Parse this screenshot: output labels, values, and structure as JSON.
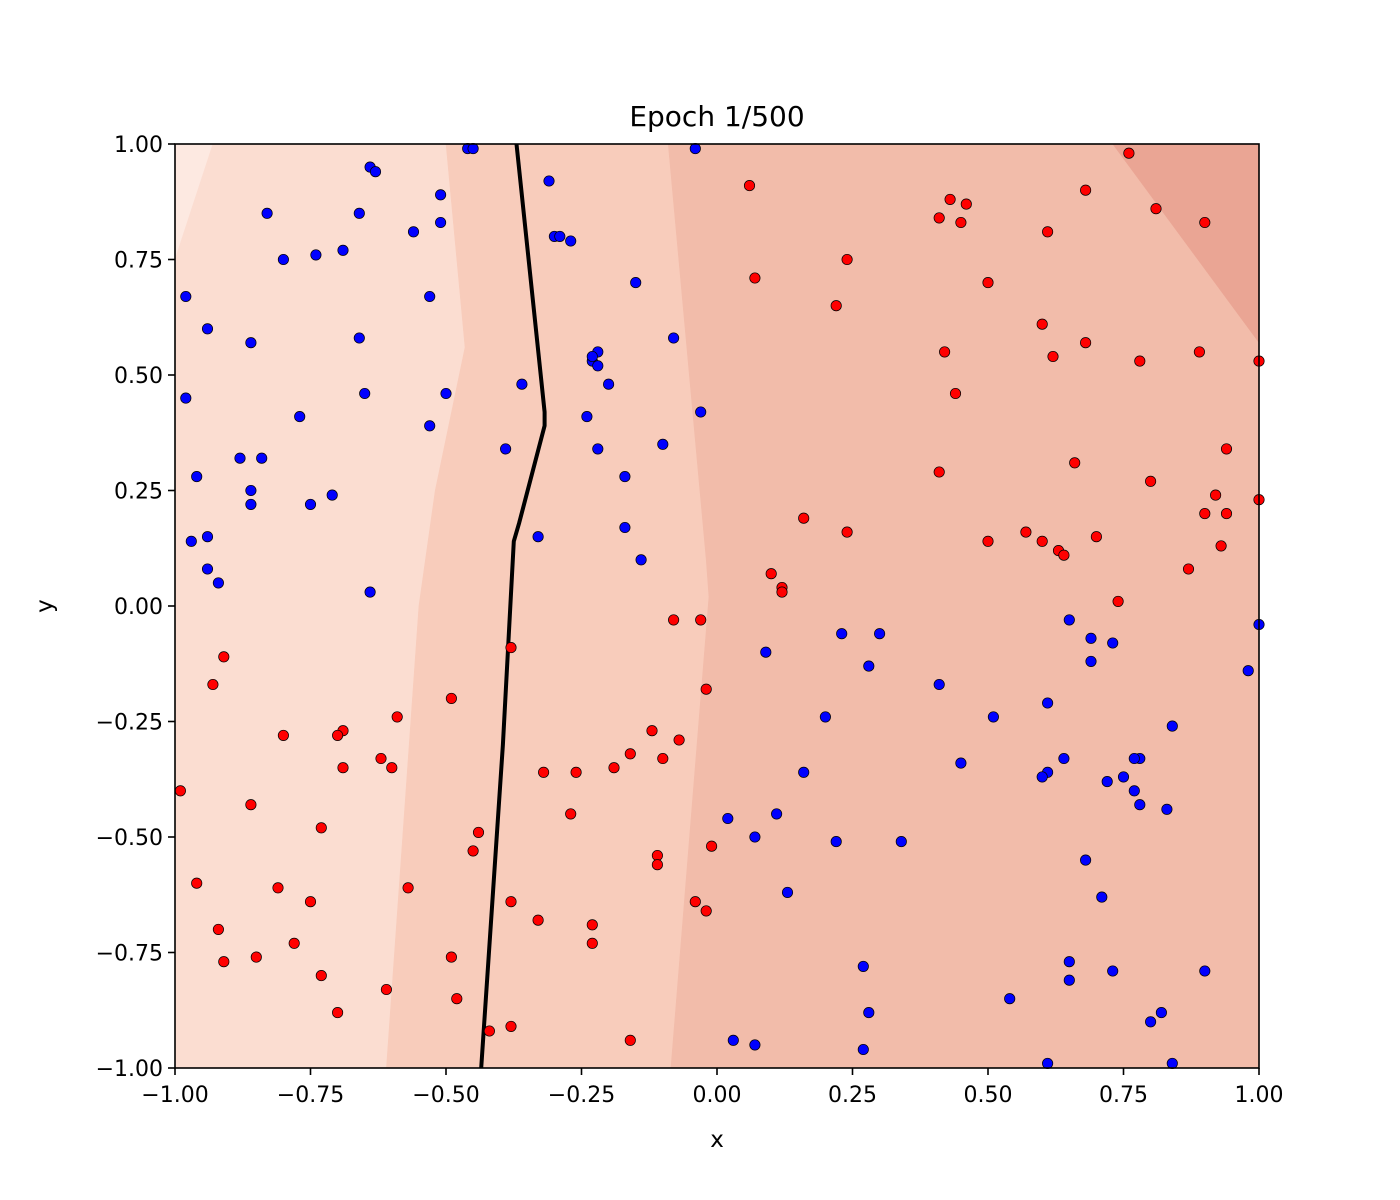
{
  "chart_data": {
    "type": "scatter",
    "title": "Epoch 1/500",
    "xlabel": "x",
    "ylabel": "y",
    "xlim": [
      -1.0,
      1.0
    ],
    "ylim": [
      -1.0,
      1.0
    ],
    "grid": false,
    "xticks": [
      "−1.00",
      "−0.75",
      "−0.50",
      "−0.25",
      "0.00",
      "0.25",
      "0.50",
      "0.75",
      "1.00"
    ],
    "yticks": [
      "−1.00",
      "−0.75",
      "−0.50",
      "−0.25",
      "0.00",
      "0.25",
      "0.50",
      "0.75",
      "1.00"
    ],
    "xtick_values": [
      -1.0,
      -0.75,
      -0.5,
      -0.25,
      0.0,
      0.25,
      0.5,
      0.75,
      1.0
    ],
    "ytick_values": [
      -1.0,
      -0.75,
      -0.5,
      -0.25,
      0.0,
      0.25,
      0.5,
      0.75,
      1.0
    ],
    "colors": {
      "class_blue": "#0000ff",
      "class_red": "#ff0000",
      "boundary": "#000000",
      "contour_levels": [
        "#fde9e1",
        "#fbddd1",
        "#f8ccbb",
        "#f2bcaa",
        "#eaa594"
      ]
    },
    "contour_regions": [
      {
        "level": 0,
        "polygon": [
          [
            -1.0,
            0.75
          ],
          [
            -0.93,
            1.0
          ],
          [
            -1.0,
            1.0
          ]
        ]
      },
      {
        "level": 1,
        "polygon": [
          [
            -1.0,
            -1.0
          ],
          [
            -0.61,
            -1.0
          ],
          [
            -0.55,
            0.0
          ],
          [
            -0.52,
            0.25
          ],
          [
            -0.465,
            0.56
          ],
          [
            -0.5,
            1.0
          ],
          [
            -0.93,
            1.0
          ],
          [
            -1.0,
            0.75
          ]
        ]
      },
      {
        "level": 2,
        "polygon": [
          [
            -0.61,
            -1.0
          ],
          [
            -0.085,
            -1.0
          ],
          [
            -0.03,
            -0.2
          ],
          [
            -0.015,
            0.02
          ],
          [
            -0.02,
            0.1
          ],
          [
            -0.09,
            1.0
          ],
          [
            -0.5,
            1.0
          ],
          [
            -0.465,
            0.56
          ],
          [
            -0.52,
            0.25
          ],
          [
            -0.55,
            0.0
          ]
        ]
      },
      {
        "level": 3,
        "polygon": [
          [
            -0.085,
            -1.0
          ],
          [
            1.0,
            -1.0
          ],
          [
            1.0,
            0.57
          ],
          [
            0.73,
            1.0
          ],
          [
            -0.09,
            1.0
          ],
          [
            -0.02,
            0.1
          ],
          [
            -0.015,
            0.02
          ],
          [
            -0.03,
            -0.2
          ]
        ]
      },
      {
        "level": 4,
        "polygon": [
          [
            0.73,
            1.0
          ],
          [
            1.0,
            0.57
          ],
          [
            1.0,
            1.0
          ]
        ]
      }
    ],
    "decision_boundary": {
      "x": [
        -0.435,
        -0.395,
        -0.375,
        -0.365,
        -0.318,
        -0.318,
        -0.37
      ],
      "y": [
        -1.0,
        -0.3,
        0.14,
        0.18,
        0.39,
        0.42,
        1.0
      ]
    },
    "series": [
      {
        "class": "blue",
        "x": [
          -0.46,
          -0.45,
          -0.64,
          -0.63,
          -0.31,
          -0.04,
          -0.83,
          -0.66,
          -0.51,
          -0.51,
          -0.56,
          -0.69,
          -0.74,
          -0.8,
          -0.3,
          -0.29,
          -0.27,
          -0.98,
          -0.94,
          -0.86,
          -0.66,
          -0.53,
          -0.15,
          -0.23,
          -0.22,
          -0.22,
          -0.2,
          -0.08,
          -0.98,
          -0.65,
          -0.36,
          -0.5,
          -0.24,
          -0.77,
          -0.53,
          -0.96,
          -0.88,
          -0.84,
          -0.39,
          -0.22,
          -0.1,
          -0.71,
          -0.86,
          -0.86,
          -0.75,
          -0.17,
          -0.97,
          -0.94,
          -0.33,
          -0.17,
          -0.14,
          -0.94,
          -0.92,
          -0.64,
          -0.03,
          -0.23,
          0.28,
          0.23,
          0.3,
          0.09,
          0.41,
          0.2,
          0.51,
          0.65,
          0.61,
          0.69,
          0.69,
          0.73,
          0.84,
          0.78,
          0.98,
          1.0,
          0.16,
          0.45,
          0.64,
          0.61,
          0.6,
          0.75,
          0.72,
          0.77,
          0.77,
          0.78,
          0.83,
          0.02,
          0.07,
          0.11,
          0.22,
          0.34,
          0.13,
          0.68,
          0.71,
          0.27,
          0.65,
          0.73,
          0.9,
          0.54,
          0.65,
          0.28,
          0.82,
          0.8,
          0.03,
          0.07,
          0.27,
          0.61,
          0.84
        ],
        "y": [
          0.99,
          0.99,
          0.95,
          0.94,
          0.92,
          0.99,
          0.85,
          0.85,
          0.89,
          0.83,
          0.81,
          0.77,
          0.76,
          0.75,
          0.8,
          0.8,
          0.79,
          0.67,
          0.6,
          0.57,
          0.58,
          0.67,
          0.7,
          0.53,
          0.52,
          0.55,
          0.48,
          0.58,
          0.45,
          0.46,
          0.48,
          0.46,
          0.41,
          0.41,
          0.39,
          0.28,
          0.32,
          0.32,
          0.34,
          0.34,
          0.35,
          0.24,
          0.25,
          0.22,
          0.22,
          0.28,
          0.14,
          0.15,
          0.15,
          0.17,
          0.1,
          0.08,
          0.05,
          0.03,
          0.42,
          0.54,
          -0.13,
          -0.06,
          -0.06,
          -0.1,
          -0.17,
          -0.24,
          -0.24,
          -0.03,
          -0.21,
          -0.07,
          -0.12,
          -0.08,
          -0.26,
          -0.33,
          -0.14,
          -0.04,
          -0.36,
          -0.34,
          -0.33,
          -0.36,
          -0.37,
          -0.37,
          -0.38,
          -0.4,
          -0.33,
          -0.43,
          -0.44,
          -0.46,
          -0.5,
          -0.45,
          -0.51,
          -0.51,
          -0.62,
          -0.55,
          -0.63,
          -0.78,
          -0.77,
          -0.79,
          -0.79,
          -0.85,
          -0.81,
          -0.88,
          -0.88,
          -0.9,
          -0.94,
          -0.95,
          -0.96,
          -0.99,
          -0.99
        ]
      },
      {
        "class": "red",
        "x": [
          0.06,
          0.07,
          0.22,
          0.24,
          0.41,
          0.43,
          0.45,
          0.46,
          0.5,
          0.61,
          0.68,
          0.76,
          0.81,
          0.9,
          0.42,
          0.44,
          0.6,
          0.62,
          0.68,
          0.78,
          0.89,
          1.0,
          0.41,
          0.66,
          0.8,
          0.94,
          0.16,
          0.24,
          0.5,
          0.57,
          0.6,
          0.63,
          0.64,
          0.7,
          0.92,
          0.9,
          0.94,
          0.93,
          1.0,
          0.74,
          0.87,
          0.1,
          0.12,
          0.12,
          -0.08,
          -0.03,
          -0.02,
          -0.38,
          -0.91,
          -0.93,
          -0.8,
          -0.69,
          -0.7,
          -0.69,
          -0.59,
          -0.62,
          -0.6,
          -0.49,
          -0.12,
          -0.16,
          -0.19,
          -0.26,
          -0.32,
          -0.1,
          -0.07,
          -0.99,
          -0.86,
          -0.73,
          -0.27,
          -0.44,
          -0.45,
          -0.11,
          -0.11,
          -0.01,
          -0.96,
          -0.81,
          -0.57,
          -0.75,
          -0.38,
          -0.33,
          -0.23,
          -0.23,
          -0.04,
          -0.02,
          -0.92,
          -0.91,
          -0.78,
          -0.85,
          -0.73,
          -0.49,
          -0.61,
          -0.48,
          -0.7,
          -0.42,
          -0.38,
          -0.16
        ],
        "y": [
          0.91,
          0.71,
          0.65,
          0.75,
          0.84,
          0.88,
          0.83,
          0.87,
          0.7,
          0.81,
          0.9,
          0.98,
          0.86,
          0.83,
          0.55,
          0.46,
          0.61,
          0.54,
          0.57,
          0.53,
          0.55,
          0.53,
          0.29,
          0.31,
          0.27,
          0.34,
          0.19,
          0.16,
          0.14,
          0.16,
          0.14,
          0.12,
          0.11,
          0.15,
          0.24,
          0.2,
          0.2,
          0.13,
          0.23,
          0.01,
          0.08,
          0.07,
          0.04,
          0.03,
          -0.03,
          -0.03,
          -0.18,
          -0.09,
          -0.11,
          -0.17,
          -0.28,
          -0.27,
          -0.28,
          -0.35,
          -0.24,
          -0.33,
          -0.35,
          -0.2,
          -0.27,
          -0.32,
          -0.35,
          -0.36,
          -0.36,
          -0.33,
          -0.29,
          -0.4,
          -0.43,
          -0.48,
          -0.45,
          -0.49,
          -0.53,
          -0.54,
          -0.56,
          -0.52,
          -0.6,
          -0.61,
          -0.61,
          -0.64,
          -0.64,
          -0.68,
          -0.69,
          -0.73,
          -0.64,
          -0.66,
          -0.7,
          -0.77,
          -0.73,
          -0.76,
          -0.8,
          -0.76,
          -0.83,
          -0.85,
          -0.88,
          -0.92,
          -0.91,
          -0.94
        ]
      }
    ]
  }
}
